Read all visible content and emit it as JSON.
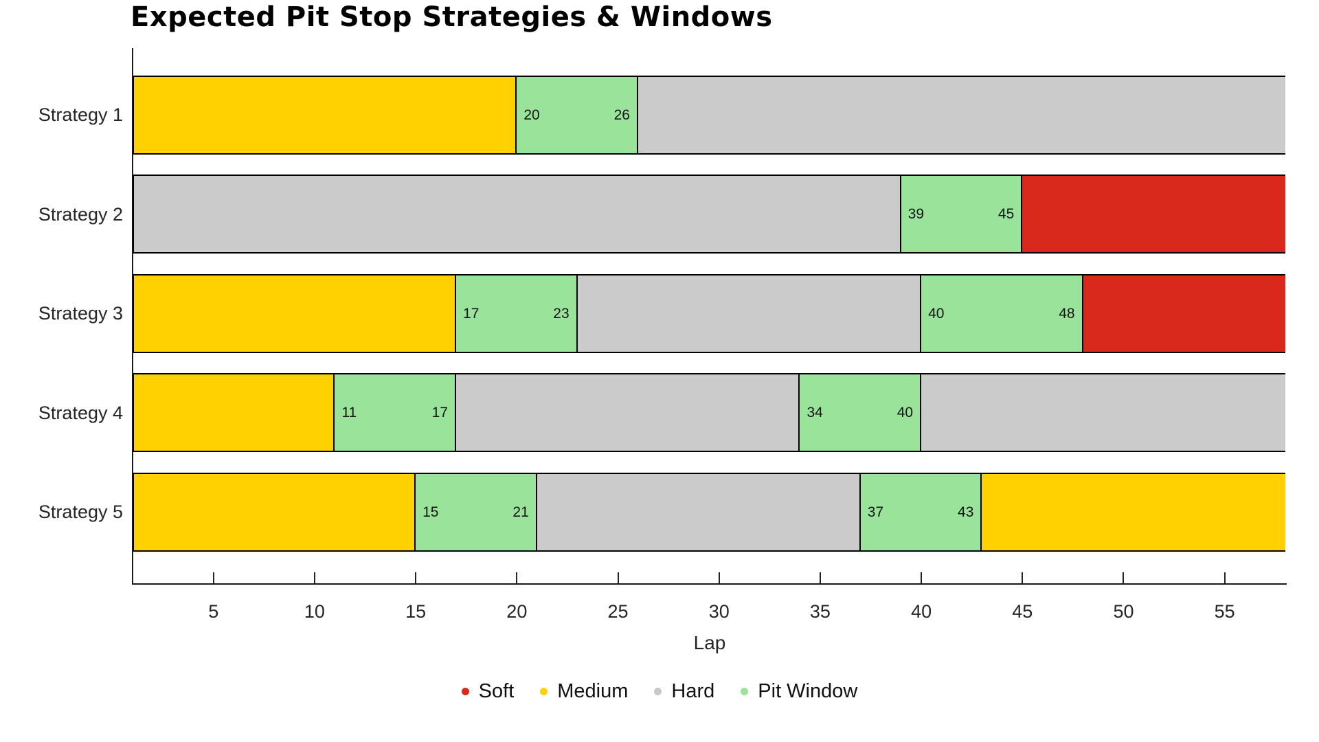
{
  "chart_data": {
    "type": "bar",
    "orientation": "horizontal",
    "stacked": true,
    "title": "Expected Pit Stop Strategies & Windows",
    "xlabel": "Lap",
    "xlim": [
      1,
      58
    ],
    "xticks": [
      "5",
      "10",
      "15",
      "20",
      "25",
      "30",
      "35",
      "40",
      "45",
      "50",
      "55"
    ],
    "xtick_values": [
      5,
      10,
      15,
      20,
      25,
      30,
      35,
      40,
      45,
      50,
      55
    ],
    "grid": false,
    "tick_direction": "in",
    "categories": [
      "Strategy 1",
      "Strategy 2",
      "Strategy 3",
      "Strategy 4",
      "Strategy 5"
    ],
    "compound_colors": {
      "Soft": "#D9291C",
      "Medium": "#FFD100",
      "Hard": "#CBCBCB",
      "Pit Window": "#99E39B"
    },
    "legend": {
      "position": "bottom",
      "entries": [
        {
          "label": "Soft",
          "color": "#D9291C"
        },
        {
          "label": "Medium",
          "color": "#FFD100"
        },
        {
          "label": "Hard",
          "color": "#C8C8C8"
        },
        {
          "label": "Pit Window",
          "color": "#99E39B"
        }
      ]
    },
    "bars": [
      {
        "category": "Strategy 1",
        "segments": [
          {
            "compound": "Medium",
            "start": 1,
            "end": 20
          },
          {
            "compound": "Pit Window",
            "start": 20,
            "end": 26,
            "start_label": "20",
            "end_label": "26"
          },
          {
            "compound": "Hard",
            "start": 26,
            "end": 58
          }
        ]
      },
      {
        "category": "Strategy 2",
        "segments": [
          {
            "compound": "Hard",
            "start": 1,
            "end": 39
          },
          {
            "compound": "Pit Window",
            "start": 39,
            "end": 45,
            "start_label": "39",
            "end_label": "45"
          },
          {
            "compound": "Soft",
            "start": 45,
            "end": 58
          }
        ]
      },
      {
        "category": "Strategy 3",
        "segments": [
          {
            "compound": "Medium",
            "start": 1,
            "end": 17
          },
          {
            "compound": "Pit Window",
            "start": 17,
            "end": 23,
            "start_label": "17",
            "end_label": "23"
          },
          {
            "compound": "Hard",
            "start": 23,
            "end": 40
          },
          {
            "compound": "Pit Window",
            "start": 40,
            "end": 48,
            "start_label": "40",
            "end_label": "48"
          },
          {
            "compound": "Soft",
            "start": 48,
            "end": 58
          }
        ]
      },
      {
        "category": "Strategy 4",
        "segments": [
          {
            "compound": "Medium",
            "start": 1,
            "end": 11
          },
          {
            "compound": "Pit Window",
            "start": 11,
            "end": 17,
            "start_label": "11",
            "end_label": "17"
          },
          {
            "compound": "Hard",
            "start": 17,
            "end": 34
          },
          {
            "compound": "Pit Window",
            "start": 34,
            "end": 40,
            "start_label": "34",
            "end_label": "40"
          },
          {
            "compound": "Hard",
            "start": 40,
            "end": 58
          }
        ]
      },
      {
        "category": "Strategy 5",
        "segments": [
          {
            "compound": "Medium",
            "start": 1,
            "end": 15
          },
          {
            "compound": "Pit Window",
            "start": 15,
            "end": 21,
            "start_label": "15",
            "end_label": "21"
          },
          {
            "compound": "Hard",
            "start": 21,
            "end": 37
          },
          {
            "compound": "Pit Window",
            "start": 37,
            "end": 43,
            "start_label": "37",
            "end_label": "43"
          },
          {
            "compound": "Medium",
            "start": 43,
            "end": 58
          }
        ]
      }
    ]
  }
}
